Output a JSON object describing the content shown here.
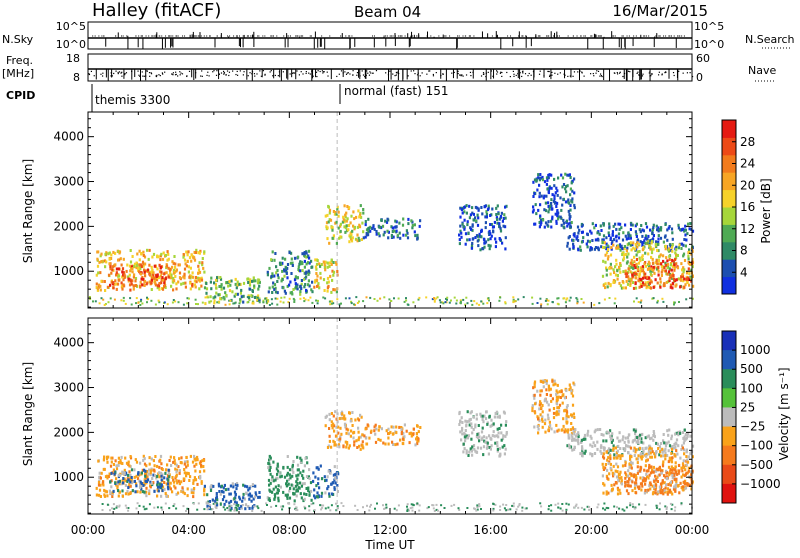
{
  "header": {
    "station": "Halley (fitACF)",
    "beam": "Beam 04",
    "date": "16/Mar/2015"
  },
  "labels": {
    "nsky": "N.Sky",
    "freq": "Freq.",
    "mhz": "[MHz]",
    "cpid": "CPID",
    "nsearch": "N.Search",
    "nave": "Nave",
    "nsky_top": "10^5",
    "nsky_bottom": "10^0",
    "nsearch_top": "10^5",
    "nsearch_bottom": "10^0",
    "freq_top": "18",
    "freq_bottom": "8",
    "nave_top": "60",
    "nave_bottom": "0"
  },
  "cpid": [
    {
      "t_hours": 0.0,
      "label": "themis 3300"
    },
    {
      "t_hours": 9.9,
      "label": "normal (fast) 151"
    }
  ],
  "chart_data": [
    {
      "type": "heatmap",
      "panel": "power",
      "xlabel": "",
      "ylabel": "Slant Range [km]",
      "xlim_hours": [
        0,
        24
      ],
      "ylim_km": [
        180,
        4550
      ],
      "yticks": [
        1000,
        2000,
        3000,
        4000
      ],
      "colorbar": {
        "label": "Power [dB]",
        "ticks": [
          4,
          8,
          12,
          16,
          20,
          24,
          28
        ],
        "range": [
          0,
          32
        ],
        "colors": [
          "#1030e0",
          "#1c4fb0",
          "#2f8a66",
          "#4faa54",
          "#a6d63a",
          "#f6d22a",
          "#f7a524",
          "#f27b1c",
          "#ed4a17",
          "#e51a12"
        ]
      },
      "regions": [
        {
          "t": [
            0.3,
            4.6
          ],
          "r": [
            600,
            1500
          ],
          "level": 20
        },
        {
          "t": [
            0.8,
            3.2
          ],
          "r": [
            700,
            1200
          ],
          "level": 26
        },
        {
          "t": [
            4.6,
            6.8
          ],
          "r": [
            300,
            900
          ],
          "level": 12
        },
        {
          "t": [
            7.1,
            8.9
          ],
          "r": [
            500,
            1500
          ],
          "level": 8
        },
        {
          "t": [
            8.9,
            9.9
          ],
          "r": [
            550,
            1300
          ],
          "level": 18
        },
        {
          "t": [
            9.4,
            10.9
          ],
          "r": [
            1650,
            2500
          ],
          "level": 16
        },
        {
          "t": [
            10.9,
            13.2
          ],
          "r": [
            1750,
            2200
          ],
          "level": 6
        },
        {
          "t": [
            14.7,
            16.6
          ],
          "r": [
            1500,
            2500
          ],
          "level": 4
        },
        {
          "t": [
            17.6,
            19.3
          ],
          "r": [
            2000,
            3200
          ],
          "level": 4
        },
        {
          "t": [
            19.0,
            24.0
          ],
          "r": [
            1500,
            2100
          ],
          "level": 4
        },
        {
          "t": [
            20.4,
            24.0
          ],
          "r": [
            650,
            1700
          ],
          "level": 16
        },
        {
          "t": [
            21.3,
            24.0
          ],
          "r": [
            650,
            1300
          ],
          "level": 26
        }
      ]
    },
    {
      "type": "heatmap",
      "panel": "velocity",
      "xlabel": "Time UT",
      "ylabel": "Slant Range [km]",
      "xlim_hours": [
        0,
        24
      ],
      "ylim_km": [
        180,
        4550
      ],
      "yticks": [
        1000,
        2000,
        3000,
        4000
      ],
      "xticks": [
        "00:00",
        "04:00",
        "08:00",
        "12:00",
        "16:00",
        "20:00",
        "00:00"
      ],
      "colorbar": {
        "label": "Velocity [m s⁻¹]",
        "ticks": [
          "1000",
          "500",
          "100",
          "25",
          "−25",
          "−100",
          "−500",
          "−1000"
        ],
        "colors": [
          "#1930b8",
          "#1f5ab3",
          "#2a8d5a",
          "#55c23a",
          "#bcbcbc",
          "#f9a21a",
          "#f57a1d",
          "#e94a18",
          "#e0120f"
        ]
      },
      "regions": [
        {
          "t": [
            0.3,
            4.6
          ],
          "r": [
            600,
            1500
          ],
          "level": "-100"
        },
        {
          "t": [
            0.8,
            3.2
          ],
          "r": [
            700,
            1200
          ],
          "level": "500"
        },
        {
          "t": [
            4.6,
            6.8
          ],
          "r": [
            300,
            900
          ],
          "level": "500"
        },
        {
          "t": [
            7.1,
            8.9
          ],
          "r": [
            500,
            1500
          ],
          "level": "100"
        },
        {
          "t": [
            8.9,
            9.9
          ],
          "r": [
            550,
            1300
          ],
          "level": "500"
        },
        {
          "t": [
            9.4,
            10.9
          ],
          "r": [
            1650,
            2500
          ],
          "level": "-100"
        },
        {
          "t": [
            10.9,
            13.2
          ],
          "r": [
            1750,
            2200
          ],
          "level": "-100"
        },
        {
          "t": [
            14.7,
            16.6
          ],
          "r": [
            1500,
            2500
          ],
          "level": "25"
        },
        {
          "t": [
            17.6,
            19.3
          ],
          "r": [
            2000,
            3200
          ],
          "level": "-100"
        },
        {
          "t": [
            19.0,
            24.0
          ],
          "r": [
            1500,
            2100
          ],
          "level": "25"
        },
        {
          "t": [
            20.4,
            24.0
          ],
          "r": [
            650,
            1700
          ],
          "level": "-100"
        },
        {
          "t": [
            21.3,
            24.0
          ],
          "r": [
            650,
            1300
          ],
          "level": "-500"
        }
      ]
    }
  ]
}
